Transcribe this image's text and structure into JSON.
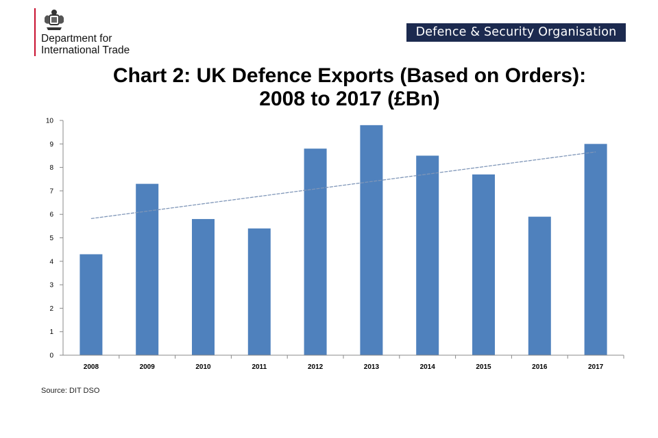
{
  "header": {
    "department_line1": "Department for",
    "department_line2": "International Trade",
    "organisation_badge": "Defence & Security Organisation",
    "accent_color": "#c8102e",
    "badge_color": "#1c2a4f"
  },
  "chart_data": {
    "type": "bar",
    "title_line1": "Chart 2: UK Defence Exports (Based on Orders):",
    "title_line2": "2008 to 2017 (£Bn)",
    "categories": [
      "2008",
      "2009",
      "2010",
      "2011",
      "2012",
      "2013",
      "2014",
      "2015",
      "2016",
      "2017"
    ],
    "values": [
      4.3,
      7.3,
      5.8,
      5.4,
      8.8,
      9.8,
      8.5,
      7.7,
      5.9,
      9.0
    ],
    "ylim": [
      0,
      10
    ],
    "yticks": [
      "0",
      "1",
      "2",
      "3",
      "4",
      "5",
      "6",
      "7",
      "8",
      "9",
      "10"
    ],
    "bar_color": "#4f81bd",
    "trendline": {
      "type": "linear",
      "start": 5.82,
      "end": 8.66,
      "color": "#7f96b8"
    },
    "grid": false,
    "legend": "none"
  },
  "footer": {
    "source": "Source: DIT  DSO"
  }
}
